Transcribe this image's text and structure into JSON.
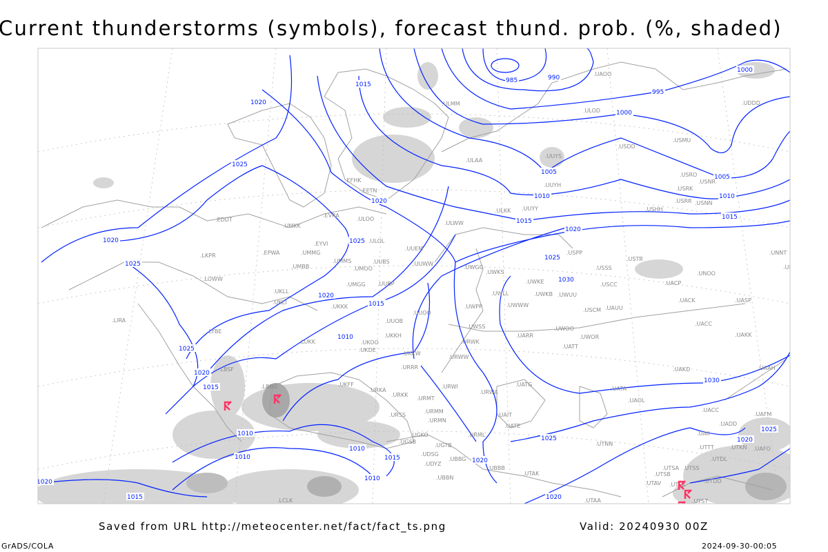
{
  "title": "Current thunderstorms (symbols), forecast thund. prob. (%, shaded)",
  "footer": {
    "saved_from": "Saved from URL http://meteocenter.net/fact/fact_ts.png",
    "valid": "Valid: 20240930 00Z",
    "software": "GrADS/COLA",
    "timestamp": "2024-09-30-00:05"
  },
  "colors": {
    "isobar": "#0020ff",
    "coastline": "#9a9a9a",
    "shading": "#d0d0d0",
    "thunderstorm_symbol": "#ff3366"
  },
  "legend_symbols": {
    "thunderstorm": "thunderstorm-symbol"
  },
  "isobar_labels": [
    "985",
    "990",
    "995",
    "1000",
    "1000",
    "1005",
    "1005",
    "1010",
    "1010",
    "1015",
    "1015",
    "1015",
    "1020",
    "1020",
    "1020",
    "1020",
    "1025",
    "1025",
    "1025",
    "1025",
    "1030",
    "1020",
    "1015",
    "1010",
    "1025",
    "1020",
    "1015",
    "1030",
    "1010",
    "1010",
    "1015",
    "1010",
    "1010",
    "1020",
    "1025",
    "1025",
    "1020",
    "1020",
    "1015",
    "1020"
  ],
  "stations": [
    "ULMM",
    "ULOD",
    "USDD",
    "USMU",
    "UUYS",
    "ULAA",
    "EFHK",
    "EETN",
    "UUYH",
    "USRO",
    "USNR",
    "USRK",
    "USRR",
    "USNN",
    "ULKK",
    "UUYY",
    "USHH",
    "ULWW",
    "EDDT",
    "EVRA",
    "ULOO",
    "UMKK",
    "EYVI",
    "ULOL",
    "UUEM",
    "LKPR",
    "EPWA",
    "UMMG",
    "UMBB",
    "UMMS",
    "UMOO",
    "UUBS",
    "UUWW",
    "UWGG",
    "UWKS",
    "USPP",
    "USSS",
    "USTR",
    "UNOO",
    "UNNT",
    "UNBB",
    "LOWW",
    "UKLL",
    "UMGG",
    "UUBP",
    "UWKE",
    "USCC",
    "UACP",
    "UKLI",
    "UWLL",
    "UWKB",
    "UWUU",
    "UWWW",
    "UACK",
    "UASP",
    "LIRA",
    "UKKK",
    "UUOO",
    "USCM",
    "UAUU",
    "UWPP",
    "UWSS",
    "UUOB",
    "UACC",
    "UWOO",
    "UWOR",
    "UARR",
    "UATT",
    "UAKK",
    "URWK",
    "LYBE",
    "UKKH",
    "UKOO",
    "LUKK",
    "UKCW",
    "UKDE",
    "URWW",
    "UAKD",
    "UAAH",
    "URRR",
    "LBSF",
    "UKFF",
    "URKA",
    "URKK",
    "URMT",
    "URWI",
    "URWA",
    "UATG",
    "UATA",
    "UAOL",
    "LBBG",
    "UACC",
    "UAFM",
    "UADD",
    "URSS",
    "URMM",
    "URMN",
    "UAIT",
    "UATE",
    "URML",
    "UAII",
    "UTTT",
    "UTKN",
    "UAFO",
    "UGKO",
    "UGSB",
    "UGTB",
    "UDSG",
    "UBBG",
    "UBBB",
    "UTAK",
    "UDYZ",
    "UBBN",
    "UTNN",
    "UTDL",
    "UTSA",
    "UTSS",
    "UTSB",
    "UTAV",
    "UTSK",
    "UTDD",
    "UTST",
    "UTAA",
    "LCLK",
    "UDDD",
    "UAOO"
  ]
}
